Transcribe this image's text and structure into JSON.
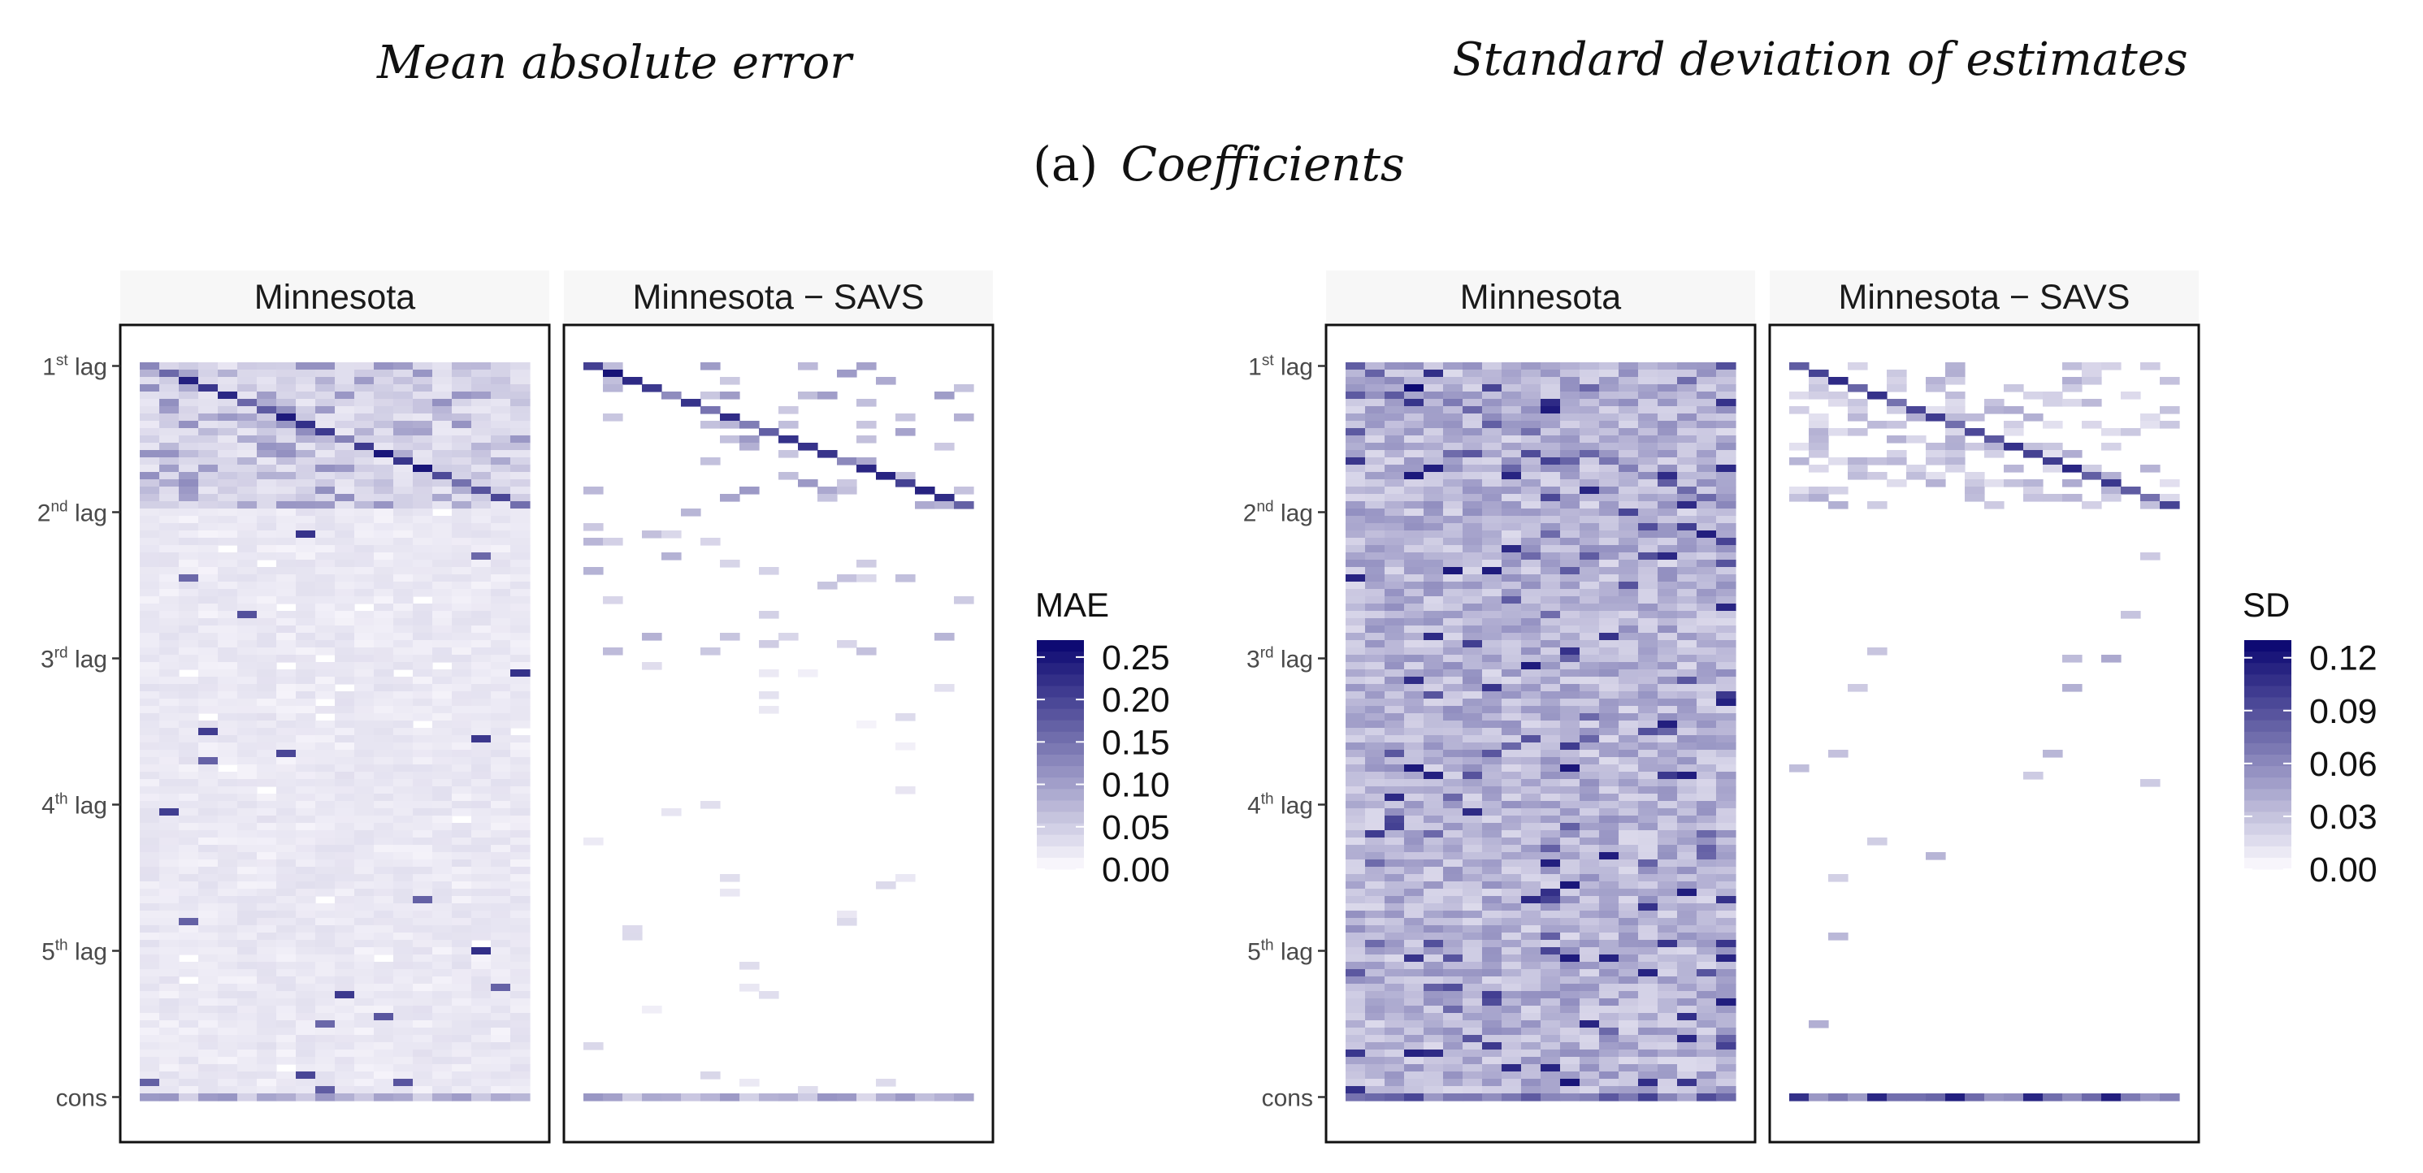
{
  "figure": {
    "caption_prefix": "(a)",
    "caption_italic": "Coefficients",
    "left_title": "Mean absolute error",
    "right_title": "Standard deviation of estimates"
  },
  "chart_data": [
    {
      "type": "heatmap",
      "group": "Mean absolute error",
      "facets": [
        {
          "name": "Minnesota",
          "pattern": "mae_min"
        },
        {
          "name": "Minnesota − SAVS",
          "pattern": "mae_savs"
        }
      ],
      "y_ticks": [
        {
          "base": "1",
          "sup": "st",
          "suffix": " lag"
        },
        {
          "base": "2",
          "sup": "nd",
          "suffix": " lag"
        },
        {
          "base": "3",
          "sup": "rd",
          "suffix": " lag"
        },
        {
          "base": "4",
          "sup": "th",
          "suffix": " lag"
        },
        {
          "base": "5",
          "sup": "th",
          "suffix": " lag"
        },
        {
          "base": "cons",
          "sup": "",
          "suffix": ""
        }
      ],
      "grid": {
        "columns": 20,
        "rows": 101
      },
      "legend": {
        "title": "MAE",
        "labels": [
          "0.25",
          "0.20",
          "0.15",
          "0.10",
          "0.05",
          "0.00"
        ],
        "min": 0,
        "max": 0.27,
        "position": "right"
      },
      "colors": {
        "low": "#f7f5fb",
        "high": "#0e0a73"
      }
    },
    {
      "type": "heatmap",
      "group": "Standard deviation of estimates",
      "facets": [
        {
          "name": "Minnesota",
          "pattern": "sd_min"
        },
        {
          "name": "Minnesota − SAVS",
          "pattern": "sd_savs"
        }
      ],
      "y_ticks": [
        {
          "base": "1",
          "sup": "st",
          "suffix": " lag"
        },
        {
          "base": "2",
          "sup": "nd",
          "suffix": " lag"
        },
        {
          "base": "3",
          "sup": "rd",
          "suffix": " lag"
        },
        {
          "base": "4",
          "sup": "th",
          "suffix": " lag"
        },
        {
          "base": "5",
          "sup": "th",
          "suffix": " lag"
        },
        {
          "base": "cons",
          "sup": "",
          "suffix": ""
        }
      ],
      "grid": {
        "columns": 20,
        "rows": 101
      },
      "legend": {
        "title": "SD",
        "labels": [
          "0.12",
          "0.09",
          "0.06",
          "0.03",
          "0.00"
        ],
        "min": 0,
        "max": 0.13,
        "position": "right"
      },
      "colors": {
        "low": "#f7f5fb",
        "high": "#0e0a73"
      }
    }
  ]
}
